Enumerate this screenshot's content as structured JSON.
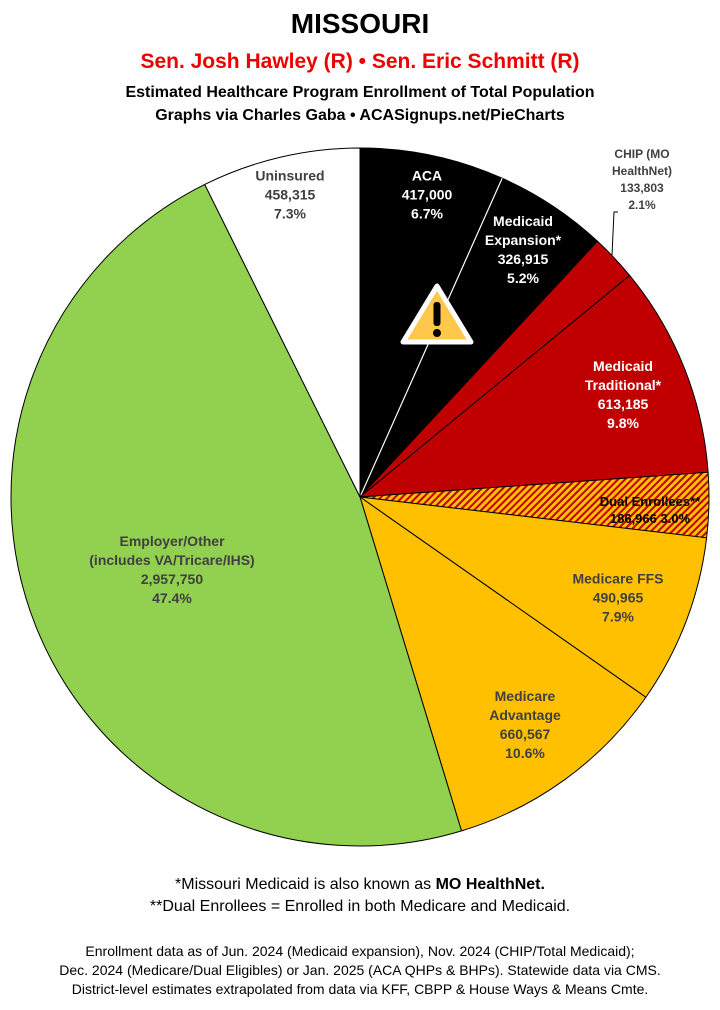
{
  "header": {
    "title": "MISSOURI",
    "senators": "Sen. Josh Hawley (R) • Sen. Eric Schmitt (R)",
    "subtitle": "Estimated Healthcare Program Enrollment of Total Population",
    "credit": "Graphs via Charles Gaba   •   ACASignups.net/PieCharts"
  },
  "chart_data": {
    "type": "pie",
    "start": "12 o'clock, clockwise",
    "slices": [
      {
        "name": "ACA",
        "lines": [
          "ACA",
          "417,000",
          "6.7%"
        ],
        "value": 417000,
        "percent": 6.7,
        "color": "#000000",
        "text_color": "#ffffff"
      },
      {
        "name": "Medicaid Expansion*",
        "lines": [
          "Medicaid",
          "Expansion*",
          "326,915",
          "5.2%"
        ],
        "value": 326915,
        "percent": 5.2,
        "color": "#000000",
        "text_color": "#ffffff"
      },
      {
        "name": "CHIP (MO HealthNet)",
        "lines": [
          "CHIP (MO",
          "HealthNet)",
          "133,803",
          "2.1%"
        ],
        "value": 133803,
        "percent": 2.1,
        "color": "#c00000",
        "text_color": "#404040"
      },
      {
        "name": "Medicaid Traditional*",
        "lines": [
          "Medicaid",
          "Traditional*",
          "613,185",
          "9.8%"
        ],
        "value": 613185,
        "percent": 9.8,
        "color": "#c00000",
        "text_color": "#ffffff"
      },
      {
        "name": "Dual Enrollees**",
        "lines": [
          "Dual Enrollees**",
          "186,966 3.0%"
        ],
        "value": 186966,
        "percent": 3.0,
        "color": "#ffc000",
        "hatch": "#c00000",
        "text_color": "#000000"
      },
      {
        "name": "Medicare FFS",
        "lines": [
          "Medicare FFS",
          "490,965",
          "7.9%"
        ],
        "value": 490965,
        "percent": 7.9,
        "color": "#ffc000",
        "text_color": "#404040"
      },
      {
        "name": "Medicare Advantage",
        "lines": [
          "Medicare",
          "Advantage",
          "660,567",
          "10.6%"
        ],
        "value": 660567,
        "percent": 10.6,
        "color": "#ffc000",
        "text_color": "#404040"
      },
      {
        "name": "Employer/Other (includes VA/Tricare/IHS)",
        "lines": [
          "Employer/Other",
          "(includes VA/Tricare/IHS)",
          "2,957,750",
          "47.4%"
        ],
        "value": 2957750,
        "percent": 47.4,
        "color": "#92d050",
        "text_color": "#404040"
      },
      {
        "name": "Uninsured",
        "lines": [
          "Uninsured",
          "458,315",
          "7.3%"
        ],
        "value": 458315,
        "percent": 7.3,
        "color": "#ffffff",
        "text_color": "#404040"
      }
    ],
    "annotation_icon": "warning-triangle-icon"
  },
  "footnotes": {
    "line1_pre": "*Missouri Medicaid is also known as ",
    "line1_bold": "MO HealthNet.",
    "line2": "**Dual Enrollees = Enrolled in both Medicare and Medicaid.",
    "sources": [
      "Enrollment data as of Jun. 2024 (Medicaid expansion), Nov. 2024 (CHIP/Total Medicaid);",
      "Dec. 2024 (Medicare/Dual Eligibles) or Jan. 2025 (ACA QHPs & BHPs). Statewide data via CMS.",
      "District-level estimates extrapolated from data via KFF, CBPP & House Ways & Means Cmte."
    ]
  }
}
